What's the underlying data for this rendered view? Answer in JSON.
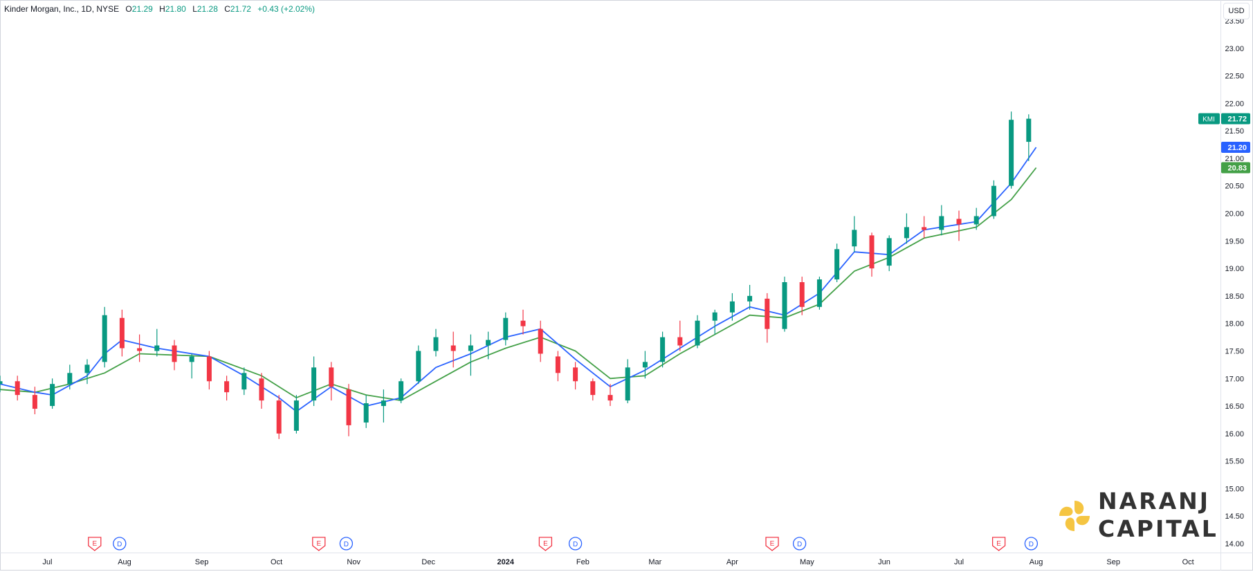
{
  "header": {
    "title": "Kinder Morgan, Inc., 1D, NYSE",
    "open_label": "O",
    "open": "21.29",
    "high_label": "H",
    "high": "21.80",
    "low_label": "L",
    "low": "21.28",
    "close_label": "C",
    "close": "21.72",
    "change": "+0.43 (+2.02%)"
  },
  "currency": "USD",
  "logo": {
    "line1": "NARANJ",
    "line2": "CAPITAL"
  },
  "colors": {
    "up": "#089981",
    "down": "#f23645",
    "ema_fast": "#2962ff",
    "ema_slow": "#43a047",
    "earnings": "#f23645",
    "dividend": "#2962ff",
    "logo_accent": "#f5c542",
    "logo_text": "#333333"
  },
  "chart_data": {
    "type": "candlestick",
    "symbol": "KMI",
    "price_labels": [
      {
        "text": "21.72",
        "value": 21.72,
        "color": "#089981",
        "ticker": "KMI"
      },
      {
        "text": "21.20",
        "value": 21.2,
        "color": "#2962ff"
      },
      {
        "text": "20.83",
        "value": 20.83,
        "color": "#43a047"
      }
    ],
    "y_ticks": [
      "14.00",
      "14.50",
      "15.00",
      "15.50",
      "16.00",
      "16.50",
      "17.00",
      "17.50",
      "18.00",
      "18.50",
      "19.00",
      "19.50",
      "20.00",
      "20.50",
      "21.00",
      "21.50",
      "22.00",
      "22.50",
      "23.00",
      "23.50"
    ],
    "ylim": [
      13.85,
      24.0
    ],
    "x_ticks": [
      {
        "label": "Jul",
        "date": "2023-07-01"
      },
      {
        "label": "Aug",
        "date": "2023-08-01"
      },
      {
        "label": "Sep",
        "date": "2023-09-01"
      },
      {
        "label": "Oct",
        "date": "2023-10-01"
      },
      {
        "label": "Nov",
        "date": "2023-11-01"
      },
      {
        "label": "Dec",
        "date": "2023-12-01"
      },
      {
        "label": "2024",
        "date": "2024-01-01",
        "bold": true
      },
      {
        "label": "Feb",
        "date": "2024-02-01"
      },
      {
        "label": "Mar",
        "date": "2024-03-01"
      },
      {
        "label": "Apr",
        "date": "2024-04-01"
      },
      {
        "label": "May",
        "date": "2024-05-01"
      },
      {
        "label": "Jun",
        "date": "2024-06-01"
      },
      {
        "label": "Jul",
        "date": "2024-07-01"
      },
      {
        "label": "Aug",
        "date": "2024-08-01"
      },
      {
        "label": "Sep",
        "date": "2024-09-01"
      },
      {
        "label": "Oct",
        "date": "2024-10-01"
      }
    ],
    "xlim": [
      "2023-06-12",
      "2024-10-14"
    ],
    "events": [
      {
        "kind": "E",
        "date": "2023-07-20"
      },
      {
        "kind": "D",
        "date": "2023-07-30"
      },
      {
        "kind": "E",
        "date": "2023-10-18"
      },
      {
        "kind": "D",
        "date": "2023-10-29"
      },
      {
        "kind": "E",
        "date": "2024-01-17"
      },
      {
        "kind": "D",
        "date": "2024-01-29"
      },
      {
        "kind": "E",
        "date": "2024-04-17"
      },
      {
        "kind": "D",
        "date": "2024-04-28"
      },
      {
        "kind": "E",
        "date": "2024-07-17"
      },
      {
        "kind": "D",
        "date": "2024-07-30"
      }
    ],
    "series": [
      {
        "name": "KMI",
        "type": "ohlc",
        "points": [
          [
            "2023-06-12",
            16.9,
            17.05,
            16.75,
            16.95
          ],
          [
            "2023-06-19",
            16.95,
            17.05,
            16.6,
            16.7
          ],
          [
            "2023-06-26",
            16.7,
            16.85,
            16.35,
            16.45
          ],
          [
            "2023-07-03",
            16.5,
            17.0,
            16.45,
            16.9
          ],
          [
            "2023-07-10",
            16.9,
            17.25,
            16.8,
            17.1
          ],
          [
            "2023-07-17",
            17.1,
            17.35,
            16.9,
            17.25
          ],
          [
            "2023-07-24",
            17.3,
            18.3,
            17.2,
            18.15
          ],
          [
            "2023-07-31",
            18.1,
            18.25,
            17.4,
            17.55
          ],
          [
            "2023-08-07",
            17.55,
            17.8,
            17.3,
            17.5
          ],
          [
            "2023-08-14",
            17.5,
            17.9,
            17.4,
            17.6
          ],
          [
            "2023-08-21",
            17.6,
            17.7,
            17.15,
            17.3
          ],
          [
            "2023-08-28",
            17.3,
            17.45,
            17.0,
            17.4
          ],
          [
            "2023-09-04",
            17.4,
            17.5,
            16.8,
            16.95
          ],
          [
            "2023-09-11",
            16.95,
            17.05,
            16.6,
            16.75
          ],
          [
            "2023-09-18",
            16.8,
            17.2,
            16.7,
            17.1
          ],
          [
            "2023-09-25",
            17.0,
            17.1,
            16.45,
            16.6
          ],
          [
            "2023-10-02",
            16.6,
            16.7,
            15.9,
            16.0
          ],
          [
            "2023-10-09",
            16.05,
            16.7,
            16.0,
            16.6
          ],
          [
            "2023-10-16",
            16.6,
            17.4,
            16.5,
            17.2
          ],
          [
            "2023-10-23",
            17.2,
            17.3,
            16.6,
            16.85
          ],
          [
            "2023-10-30",
            16.8,
            16.9,
            15.95,
            16.15
          ],
          [
            "2023-11-06",
            16.2,
            16.7,
            16.1,
            16.55
          ],
          [
            "2023-11-13",
            16.5,
            16.8,
            16.2,
            16.6
          ],
          [
            "2023-11-20",
            16.6,
            17.0,
            16.55,
            16.95
          ],
          [
            "2023-11-27",
            16.95,
            17.6,
            16.9,
            17.5
          ],
          [
            "2023-12-04",
            17.5,
            17.9,
            17.4,
            17.75
          ],
          [
            "2023-12-11",
            17.6,
            17.85,
            17.2,
            17.5
          ],
          [
            "2023-12-18",
            17.5,
            17.8,
            17.05,
            17.6
          ],
          [
            "2023-12-25",
            17.6,
            17.85,
            17.35,
            17.7
          ],
          [
            "2024-01-01",
            17.7,
            18.2,
            17.6,
            18.1
          ],
          [
            "2024-01-08",
            18.05,
            18.25,
            17.8,
            17.95
          ],
          [
            "2024-01-15",
            17.9,
            18.05,
            17.3,
            17.45
          ],
          [
            "2024-01-22",
            17.4,
            17.5,
            16.95,
            17.1
          ],
          [
            "2024-01-29",
            17.2,
            17.3,
            16.8,
            16.95
          ],
          [
            "2024-02-05",
            16.95,
            17.0,
            16.6,
            16.7
          ],
          [
            "2024-02-12",
            16.7,
            16.9,
            16.5,
            16.6
          ],
          [
            "2024-02-19",
            16.6,
            17.35,
            16.55,
            17.2
          ],
          [
            "2024-02-26",
            17.2,
            17.5,
            17.0,
            17.3
          ],
          [
            "2024-03-04",
            17.3,
            17.85,
            17.2,
            17.75
          ],
          [
            "2024-03-11",
            17.75,
            18.05,
            17.5,
            17.6
          ],
          [
            "2024-03-18",
            17.6,
            18.15,
            17.55,
            18.05
          ],
          [
            "2024-03-25",
            18.05,
            18.25,
            17.8,
            18.2
          ],
          [
            "2024-04-01",
            18.2,
            18.55,
            18.05,
            18.4
          ],
          [
            "2024-04-08",
            18.4,
            18.7,
            18.25,
            18.5
          ],
          [
            "2024-04-15",
            18.45,
            18.55,
            17.65,
            17.9
          ],
          [
            "2024-04-22",
            17.9,
            18.85,
            17.85,
            18.75
          ],
          [
            "2024-04-29",
            18.75,
            18.85,
            18.15,
            18.3
          ],
          [
            "2024-05-06",
            18.3,
            18.85,
            18.25,
            18.8
          ],
          [
            "2024-05-13",
            18.8,
            19.45,
            18.75,
            19.35
          ],
          [
            "2024-05-20",
            19.4,
            19.95,
            19.3,
            19.7
          ],
          [
            "2024-05-27",
            19.6,
            19.65,
            18.85,
            19.0
          ],
          [
            "2024-06-03",
            19.05,
            19.6,
            18.95,
            19.55
          ],
          [
            "2024-06-10",
            19.55,
            20.0,
            19.45,
            19.75
          ],
          [
            "2024-06-17",
            19.75,
            19.95,
            19.55,
            19.7
          ],
          [
            "2024-06-24",
            19.7,
            20.15,
            19.6,
            19.95
          ],
          [
            "2024-07-01",
            19.9,
            20.05,
            19.5,
            19.8
          ],
          [
            "2024-07-08",
            19.8,
            20.1,
            19.7,
            19.95
          ],
          [
            "2024-07-15",
            19.95,
            20.6,
            19.9,
            20.5
          ],
          [
            "2024-07-22",
            20.5,
            21.85,
            20.45,
            21.7
          ],
          [
            "2024-07-29",
            21.3,
            21.8,
            20.95,
            21.72
          ]
        ]
      },
      {
        "name": "EMA fast",
        "type": "line",
        "color": "#2962ff",
        "points": [
          [
            "2023-06-12",
            16.9
          ],
          [
            "2023-06-26",
            16.75
          ],
          [
            "2023-07-03",
            16.7
          ],
          [
            "2023-07-17",
            17.05
          ],
          [
            "2023-07-24",
            17.45
          ],
          [
            "2023-07-31",
            17.7
          ],
          [
            "2023-08-14",
            17.55
          ],
          [
            "2023-09-04",
            17.4
          ],
          [
            "2023-09-18",
            17.05
          ],
          [
            "2023-10-02",
            16.65
          ],
          [
            "2023-10-09",
            16.4
          ],
          [
            "2023-10-23",
            16.85
          ],
          [
            "2023-11-06",
            16.5
          ],
          [
            "2023-11-20",
            16.65
          ],
          [
            "2023-12-04",
            17.2
          ],
          [
            "2023-12-18",
            17.45
          ],
          [
            "2024-01-01",
            17.75
          ],
          [
            "2024-01-15",
            17.9
          ],
          [
            "2024-01-29",
            17.35
          ],
          [
            "2024-02-12",
            16.85
          ],
          [
            "2024-02-26",
            17.15
          ],
          [
            "2024-03-11",
            17.55
          ],
          [
            "2024-03-25",
            17.95
          ],
          [
            "2024-04-08",
            18.3
          ],
          [
            "2024-04-22",
            18.15
          ],
          [
            "2024-05-06",
            18.55
          ],
          [
            "2024-05-20",
            19.3
          ],
          [
            "2024-06-03",
            19.25
          ],
          [
            "2024-06-17",
            19.7
          ],
          [
            "2024-07-08",
            19.85
          ],
          [
            "2024-07-22",
            20.55
          ],
          [
            "2024-08-01",
            21.2
          ]
        ]
      },
      {
        "name": "EMA slow",
        "type": "line",
        "color": "#43a047",
        "points": [
          [
            "2023-06-12",
            16.8
          ],
          [
            "2023-06-26",
            16.75
          ],
          [
            "2023-07-10",
            16.9
          ],
          [
            "2023-07-24",
            17.1
          ],
          [
            "2023-08-07",
            17.45
          ],
          [
            "2023-09-04",
            17.4
          ],
          [
            "2023-09-25",
            17.05
          ],
          [
            "2023-10-09",
            16.65
          ],
          [
            "2023-10-23",
            16.9
          ],
          [
            "2023-11-06",
            16.7
          ],
          [
            "2023-11-20",
            16.6
          ],
          [
            "2023-12-04",
            16.95
          ],
          [
            "2023-12-18",
            17.3
          ],
          [
            "2024-01-01",
            17.55
          ],
          [
            "2024-01-15",
            17.75
          ],
          [
            "2024-01-29",
            17.5
          ],
          [
            "2024-02-12",
            17.0
          ],
          [
            "2024-02-26",
            17.05
          ],
          [
            "2024-03-11",
            17.45
          ],
          [
            "2024-03-25",
            17.8
          ],
          [
            "2024-04-08",
            18.15
          ],
          [
            "2024-04-22",
            18.1
          ],
          [
            "2024-05-06",
            18.35
          ],
          [
            "2024-05-20",
            18.95
          ],
          [
            "2024-06-03",
            19.2
          ],
          [
            "2024-06-17",
            19.55
          ],
          [
            "2024-07-08",
            19.75
          ],
          [
            "2024-07-22",
            20.25
          ],
          [
            "2024-08-01",
            20.83
          ]
        ]
      }
    ]
  }
}
